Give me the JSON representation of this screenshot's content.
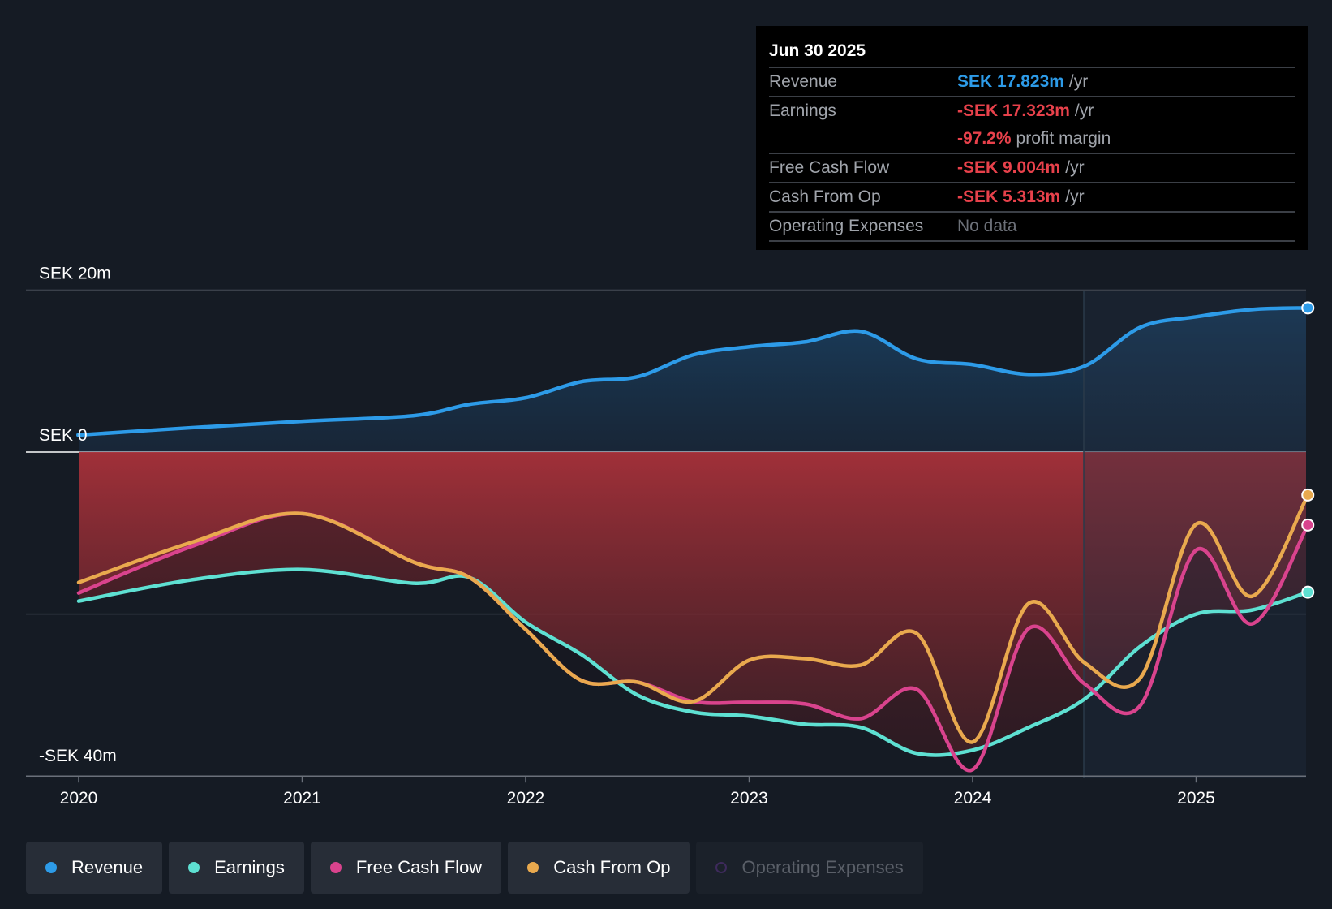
{
  "chart_data": {
    "type": "area",
    "x_ticks": [
      "2020",
      "2021",
      "2022",
      "2023",
      "2024",
      "2025"
    ],
    "y_axis_labels": [
      "SEK 20m",
      "SEK 0",
      "-SEK 40m"
    ],
    "ylim": [
      -40,
      20
    ],
    "grid": "horizontal",
    "series": [
      {
        "name": "Revenue",
        "color": "#2d9be8",
        "x": [
          2020.0,
          2020.5,
          2021.0,
          2021.5,
          2021.75,
          2022.0,
          2022.25,
          2022.5,
          2022.75,
          2023.0,
          2023.25,
          2023.5,
          2023.75,
          2024.0,
          2024.25,
          2024.5,
          2024.75,
          2025.0,
          2025.25,
          2025.5
        ],
        "values": [
          2.1,
          3.0,
          3.8,
          4.5,
          5.9,
          6.7,
          8.7,
          9.3,
          12.0,
          13.0,
          13.6,
          14.9,
          11.5,
          10.8,
          9.6,
          10.6,
          15.4,
          16.7,
          17.6,
          17.8
        ]
      },
      {
        "name": "Earnings",
        "color": "#5ee0d2",
        "x": [
          2020.0,
          2020.5,
          2021.0,
          2021.5,
          2021.75,
          2022.0,
          2022.25,
          2022.5,
          2022.75,
          2023.0,
          2023.25,
          2023.5,
          2023.75,
          2024.0,
          2024.25,
          2024.5,
          2024.75,
          2025.0,
          2025.25,
          2025.5
        ],
        "values": [
          -18.4,
          -15.8,
          -14.5,
          -16.2,
          -15.5,
          -21.0,
          -25.0,
          -30.0,
          -32.1,
          -32.6,
          -33.6,
          -34.0,
          -37.2,
          -36.8,
          -34.0,
          -30.5,
          -24.0,
          -20.0,
          -19.5,
          -17.3
        ]
      },
      {
        "name": "Free Cash Flow",
        "color": "#d9438d",
        "x": [
          2020.0,
          2020.5,
          2021.0,
          2021.5,
          2021.75,
          2022.0,
          2022.25,
          2022.5,
          2022.75,
          2023.0,
          2023.25,
          2023.5,
          2023.75,
          2024.0,
          2024.25,
          2024.5,
          2024.75,
          2025.0,
          2025.25,
          2025.5
        ],
        "values": [
          -17.4,
          -11.7,
          -7.6,
          -13.6,
          -15.5,
          -21.9,
          -28.2,
          -28.4,
          -30.8,
          -30.9,
          -31.1,
          -32.9,
          -29.3,
          -39.2,
          -21.8,
          -28.6,
          -31.3,
          -12.1,
          -21.2,
          -9.0
        ]
      },
      {
        "name": "Cash From Op",
        "color": "#e9a94e",
        "x": [
          2020.0,
          2020.5,
          2021.0,
          2021.5,
          2021.75,
          2022.0,
          2022.25,
          2022.5,
          2022.75,
          2023.0,
          2023.25,
          2023.5,
          2023.75,
          2024.0,
          2024.25,
          2024.5,
          2024.75,
          2025.0,
          2025.25,
          2025.5
        ],
        "values": [
          -16.1,
          -11.2,
          -7.6,
          -13.6,
          -15.5,
          -21.9,
          -28.2,
          -28.4,
          -30.8,
          -25.7,
          -25.5,
          -26.3,
          -22.4,
          -35.8,
          -18.7,
          -26.0,
          -27.9,
          -8.9,
          -17.8,
          -5.3
        ]
      },
      {
        "name": "Operating Expenses",
        "color": "#6b3fa0",
        "values": []
      }
    ]
  },
  "tooltip": {
    "date": "Jun 30 2025",
    "revenue_label": "Revenue",
    "revenue_value": "SEK 17.823m",
    "revenue_unit": "/yr",
    "earnings_label": "Earnings",
    "earnings_value": "-SEK 17.323m",
    "earnings_unit": "/yr",
    "margin_value": "-97.2%",
    "margin_unit": "profit margin",
    "fcf_label": "Free Cash Flow",
    "fcf_value": "-SEK 9.004m",
    "fcf_unit": "/yr",
    "cfo_label": "Cash From Op",
    "cfo_value": "-SEK 5.313m",
    "cfo_unit": "/yr",
    "opex_label": "Operating Expenses",
    "opex_value": "No data"
  },
  "legend": {
    "items": [
      {
        "label": "Revenue",
        "color": "#2d9be8",
        "active": true
      },
      {
        "label": "Earnings",
        "color": "#5ee0d2",
        "active": true
      },
      {
        "label": "Free Cash Flow",
        "color": "#d9438d",
        "active": true
      },
      {
        "label": "Cash From Op",
        "color": "#e9a94e",
        "active": true
      },
      {
        "label": "Operating Expenses",
        "color": "#6b3fa0",
        "active": false
      }
    ]
  }
}
